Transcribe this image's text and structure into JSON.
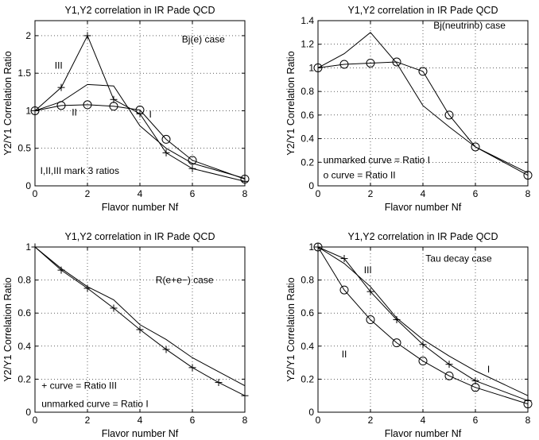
{
  "chart_data": [
    {
      "type": "line",
      "title": "Y1,Y2 correlation in IR Pade QCD",
      "xlabel": "Flavor number Nf",
      "ylabel": "Y2/Y1 Correlation Ratio",
      "xlim": [
        0,
        8
      ],
      "ylim": [
        0,
        2.2
      ],
      "xticks": [
        0,
        2,
        4,
        6,
        8
      ],
      "xtick_labels": [
        "0",
        "2",
        "4",
        "6",
        "8"
      ],
      "yticks": [
        0,
        0.5,
        1,
        1.5,
        2
      ],
      "ytick_labels": [
        "0",
        "0.5",
        "1",
        "1.5",
        "2"
      ],
      "grid": true,
      "series": [
        {
          "name": "Ratio I",
          "marker": "none",
          "x": [
            0,
            1,
            2,
            3,
            4,
            5,
            6,
            8
          ],
          "y": [
            1.0,
            1.12,
            1.35,
            1.33,
            0.8,
            0.5,
            0.3,
            0.1
          ]
        },
        {
          "name": "Ratio II",
          "marker": "circle",
          "x": [
            0,
            1,
            2,
            3,
            4,
            5,
            6,
            8
          ],
          "y": [
            1.0,
            1.07,
            1.08,
            1.06,
            1.01,
            0.62,
            0.34,
            0.09
          ]
        },
        {
          "name": "Ratio III",
          "marker": "plus",
          "x": [
            0,
            1,
            2,
            3,
            4,
            5,
            6,
            8
          ],
          "y": [
            1.0,
            1.31,
            2.0,
            1.15,
            0.96,
            0.44,
            0.23,
            0.06
          ]
        }
      ],
      "annotations": [
        {
          "text": "Bj(e) case",
          "x": 5.6,
          "y": 1.95
        },
        {
          "text": "III",
          "x": 0.75,
          "y": 1.6
        },
        {
          "text": "I",
          "x": 4.35,
          "y": 0.95
        },
        {
          "text": "II",
          "x": 1.4,
          "y": 0.98
        },
        {
          "text": "I,II,III mark 3 ratios",
          "x": 0.2,
          "y": 0.2
        }
      ]
    },
    {
      "type": "line",
      "title": "Y1,Y2 correlation in IR Pade QCD",
      "xlabel": "Flavor number Nf",
      "ylabel": "Y2/Y1 Correlation Ratio",
      "xlim": [
        0,
        8
      ],
      "ylim": [
        0,
        1.4
      ],
      "xticks": [
        0,
        2,
        4,
        6,
        8
      ],
      "xtick_labels": [
        "0",
        "2",
        "4",
        "6",
        "8"
      ],
      "yticks": [
        0,
        0.2,
        0.4,
        0.6,
        0.8,
        1,
        1.2,
        1.4
      ],
      "ytick_labels": [
        "0",
        "0.2",
        "0.4",
        "0.6",
        "0.8",
        "1",
        "1.2",
        "1.4"
      ],
      "grid": true,
      "series": [
        {
          "name": "Ratio I",
          "marker": "none",
          "x": [
            0,
            1,
            2,
            3,
            4,
            5,
            6,
            8
          ],
          "y": [
            1.0,
            1.12,
            1.3,
            1.04,
            0.68,
            0.5,
            0.33,
            0.11
          ]
        },
        {
          "name": "Ratio II",
          "marker": "circle",
          "x": [
            0,
            1,
            2,
            3,
            4,
            5,
            6,
            8
          ],
          "y": [
            1.0,
            1.03,
            1.04,
            1.05,
            0.97,
            0.6,
            0.33,
            0.09
          ]
        }
      ],
      "annotations": [
        {
          "text": "Bj(neutrino) case",
          "x": 4.4,
          "y": 1.36
        },
        {
          "text": "unmarked curve = Ratio I",
          "x": 0.2,
          "y": 0.22
        },
        {
          "text": "o curve = Ratio II",
          "x": 0.2,
          "y": 0.09
        }
      ]
    },
    {
      "type": "line",
      "title": "Y1,Y2 correlation in IR Pade QCD",
      "xlabel": "Flavor number Nf",
      "ylabel": "Y2/Y1 Correlation Ratio",
      "xlim": [
        0,
        8
      ],
      "ylim": [
        0,
        1
      ],
      "xticks": [
        0,
        2,
        4,
        6,
        8
      ],
      "xtick_labels": [
        "0",
        "2",
        "4",
        "6",
        "8"
      ],
      "yticks": [
        0,
        0.2,
        0.4,
        0.6,
        0.8,
        1
      ],
      "ytick_labels": [
        "0",
        "0.2",
        "0.4",
        "0.6",
        "0.8",
        "1"
      ],
      "grid": true,
      "series": [
        {
          "name": "Ratio I",
          "marker": "none",
          "x": [
            0,
            1,
            2,
            3,
            4,
            5,
            6,
            8
          ],
          "y": [
            1.0,
            0.87,
            0.76,
            0.68,
            0.53,
            0.44,
            0.33,
            0.16
          ]
        },
        {
          "name": "Ratio III",
          "marker": "plus",
          "x": [
            0,
            1,
            2,
            3,
            4,
            5,
            6,
            7,
            8
          ],
          "y": [
            1.0,
            0.86,
            0.75,
            0.63,
            0.5,
            0.38,
            0.27,
            0.18,
            0.1
          ]
        }
      ],
      "annotations": [
        {
          "text": "R(e+e−) case",
          "x": 4.6,
          "y": 0.8
        },
        {
          "text": "+ curve = Ratio III",
          "x": 0.25,
          "y": 0.16
        },
        {
          "text": "unmarked curve = Ratio I",
          "x": 0.25,
          "y": 0.05
        }
      ]
    },
    {
      "type": "line",
      "title": "Y1,Y2 correlation in IR Pade QCD",
      "xlabel": "Flavor number Nf",
      "ylabel": "Y2/Y1 Correlation Ratio",
      "xlim": [
        0,
        8
      ],
      "ylim": [
        0,
        1
      ],
      "xticks": [
        0,
        2,
        4,
        6,
        8
      ],
      "xtick_labels": [
        "0",
        "2",
        "4",
        "6",
        "8"
      ],
      "yticks": [
        0,
        0.2,
        0.4,
        0.6,
        0.8,
        1
      ],
      "ytick_labels": [
        "0",
        "0.2",
        "0.4",
        "0.6",
        "0.8",
        "1"
      ],
      "grid": true,
      "series": [
        {
          "name": "Ratio I",
          "marker": "none",
          "x": [
            0,
            1,
            2,
            3,
            4,
            5,
            6,
            8
          ],
          "y": [
            1.0,
            0.9,
            0.76,
            0.57,
            0.44,
            0.34,
            0.25,
            0.1
          ]
        },
        {
          "name": "Ratio II",
          "marker": "circle",
          "x": [
            0,
            1,
            2,
            3,
            4,
            5,
            6,
            8
          ],
          "y": [
            1.0,
            0.74,
            0.56,
            0.42,
            0.31,
            0.22,
            0.15,
            0.05
          ]
        },
        {
          "name": "Ratio III",
          "marker": "plus",
          "x": [
            0,
            1,
            2,
            3,
            4,
            5,
            6,
            8
          ],
          "y": [
            1.0,
            0.93,
            0.73,
            0.56,
            0.41,
            0.29,
            0.19,
            0.07
          ]
        }
      ],
      "annotations": [
        {
          "text": "Tau decay case",
          "x": 4.1,
          "y": 0.93
        },
        {
          "text": "III",
          "x": 1.75,
          "y": 0.86
        },
        {
          "text": "I",
          "x": 6.45,
          "y": 0.26
        },
        {
          "text": "II",
          "x": 0.9,
          "y": 0.35
        }
      ]
    }
  ]
}
